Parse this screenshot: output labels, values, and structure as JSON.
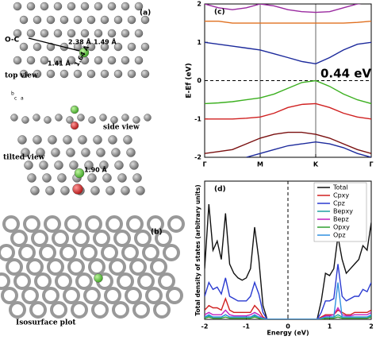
{
  "structure_panel": {
    "label_a": "(a)",
    "oc": "O-C",
    "d1": "2.38 Å",
    "d2": "1.49 Å",
    "d3": "1.41 Å",
    "d4": "1.64 Å",
    "top": "top view",
    "side": "side view",
    "tilted": "tilted view",
    "d5": "1.90 Å",
    "label_b": "(b)",
    "iso": "Isosurface plot",
    "axis_b": "b",
    "axis_c": "c",
    "axis_a": "a"
  },
  "chart_data": [
    {
      "type": "line",
      "panel": "(c)",
      "ylabel": "E-Ef (eV)",
      "annotation": "0.44 eV",
      "hline": 0,
      "x": [
        0,
        0.25,
        0.5,
        0.75,
        1,
        1.25,
        1.5,
        1.75,
        2,
        2.25,
        2.5,
        2.75,
        3
      ],
      "xlim": [
        0,
        3
      ],
      "xticks": [
        {
          "value": 0,
          "label": "Γ"
        },
        {
          "value": 1,
          "label": "M"
        },
        {
          "value": 2,
          "label": "K"
        },
        {
          "value": 3,
          "label": "Γ"
        }
      ],
      "ylim": [
        -2,
        2
      ],
      "yticks": [
        -2,
        -1,
        0,
        1,
        2
      ],
      "series": [
        {
          "color": "#1c2a9c",
          "values": [
            1.0,
            0.95,
            0.9,
            0.85,
            0.8,
            0.7,
            0.6,
            0.5,
            0.44,
            0.6,
            0.8,
            0.95,
            1.0
          ]
        },
        {
          "color": "#3cb020",
          "values": [
            -0.6,
            -0.58,
            -0.55,
            -0.5,
            -0.45,
            -0.35,
            -0.2,
            -0.05,
            0.0,
            -0.15,
            -0.35,
            -0.5,
            -0.6
          ]
        },
        {
          "color": "#d02020",
          "values": [
            -1.0,
            -1.0,
            -1.0,
            -0.98,
            -0.95,
            -0.85,
            -0.7,
            -0.62,
            -0.6,
            -0.7,
            -0.85,
            -0.95,
            -1.0
          ]
        },
        {
          "color": "#7a1010",
          "values": [
            -1.9,
            -1.85,
            -1.8,
            -1.65,
            -1.5,
            -1.4,
            -1.35,
            -1.35,
            -1.4,
            -1.5,
            -1.65,
            -1.8,
            -1.9
          ]
        },
        {
          "color": "#1c2a9c",
          "values": [
            null,
            null,
            null,
            -2.0,
            -1.9,
            -1.8,
            -1.7,
            -1.65,
            -1.6,
            -1.65,
            -1.75,
            -1.9,
            -2.0
          ]
        },
        {
          "color": "#e07020",
          "values": [
            1.55,
            1.55,
            1.5,
            1.5,
            1.5,
            1.5,
            1.5,
            1.5,
            1.5,
            1.5,
            1.5,
            1.52,
            1.55
          ]
        },
        {
          "color": "#9a2aa0",
          "values": [
            2.0,
            1.9,
            1.85,
            1.9,
            2.0,
            1.95,
            1.85,
            1.8,
            1.78,
            1.8,
            1.9,
            2.0,
            2.05
          ]
        }
      ]
    },
    {
      "type": "line",
      "panel": "(d)",
      "ylabel": "Total density of states (arbitrary units)",
      "xlabel": "Energy (eV)",
      "vline": 0,
      "x": [
        -2.0,
        -1.9,
        -1.8,
        -1.7,
        -1.6,
        -1.5,
        -1.4,
        -1.3,
        -1.2,
        -1.1,
        -1.0,
        -0.9,
        -0.8,
        -0.7,
        -0.6,
        -0.5,
        -0.4,
        -0.3,
        -0.2,
        -0.1,
        0,
        0.1,
        0.2,
        0.3,
        0.4,
        0.5,
        0.6,
        0.7,
        0.8,
        0.9,
        1.0,
        1.1,
        1.2,
        1.3,
        1.4,
        1.5,
        1.6,
        1.7,
        1.8,
        1.9,
        2.0
      ],
      "xlim": [
        -2,
        2
      ],
      "xticks": [
        -2,
        -1,
        0,
        1,
        2
      ],
      "ylim": [
        0,
        6
      ],
      "series": [
        {
          "name": "Total",
          "color": "#111111",
          "values": [
            2.2,
            5.0,
            3.0,
            3.4,
            2.6,
            4.6,
            2.4,
            2.0,
            1.8,
            1.7,
            1.8,
            2.2,
            4.0,
            2.6,
            0.6,
            0,
            0,
            0,
            0,
            0,
            0,
            0,
            0,
            0,
            0,
            0,
            0,
            0,
            0.8,
            2.0,
            1.9,
            2.2,
            3.6,
            2.6,
            2.0,
            2.2,
            2.4,
            2.6,
            3.2,
            3.0,
            4.2
          ]
        },
        {
          "name": "Cpxy",
          "color": "#d02020",
          "values": [
            0.4,
            0.6,
            0.5,
            0.5,
            0.4,
            0.9,
            0.4,
            0.3,
            0.3,
            0.3,
            0.3,
            0.3,
            0.6,
            0.4,
            0.1,
            0,
            0,
            0,
            0,
            0,
            0,
            0,
            0,
            0,
            0,
            0,
            0,
            0,
            0.1,
            0.2,
            0.2,
            0.2,
            0.4,
            0.3,
            0.2,
            0.2,
            0.3,
            0.3,
            0.3,
            0.3,
            0.4
          ]
        },
        {
          "name": "Cpz",
          "color": "#2a3ad0",
          "values": [
            1.0,
            1.6,
            1.3,
            1.4,
            1.1,
            1.8,
            1.0,
            0.9,
            0.8,
            0.8,
            0.8,
            1.0,
            1.6,
            1.1,
            0.3,
            0,
            0,
            0,
            0,
            0,
            0,
            0,
            0,
            0,
            0,
            0,
            0,
            0,
            0.3,
            0.8,
            0.8,
            0.9,
            2.4,
            1.0,
            0.8,
            0.9,
            1.0,
            1.0,
            1.3,
            1.2,
            1.6
          ]
        },
        {
          "name": "Bepxy",
          "color": "#20a0a0",
          "values": [
            0.1,
            0.15,
            0.1,
            0.1,
            0.1,
            0.2,
            0.1,
            0.1,
            0.1,
            0.1,
            0.1,
            0.1,
            0.15,
            0.1,
            0.05,
            0,
            0,
            0,
            0,
            0,
            0,
            0,
            0,
            0,
            0,
            0,
            0,
            0,
            0.05,
            0.1,
            0.1,
            0.1,
            0.2,
            0.1,
            0.1,
            0.1,
            0.1,
            0.1,
            0.1,
            0.1,
            0.15
          ]
        },
        {
          "name": "Bepz",
          "color": "#c020c0",
          "values": [
            0.2,
            0.3,
            0.2,
            0.2,
            0.2,
            0.4,
            0.2,
            0.15,
            0.15,
            0.15,
            0.15,
            0.2,
            0.3,
            0.2,
            0.05,
            0,
            0,
            0,
            0,
            0,
            0,
            0,
            0,
            0,
            0,
            0,
            0,
            0,
            0.05,
            0.15,
            0.15,
            0.2,
            0.5,
            0.2,
            0.15,
            0.15,
            0.2,
            0.2,
            0.2,
            0.2,
            0.3
          ]
        },
        {
          "name": "Opxy",
          "color": "#30a030",
          "values": [
            0.05,
            0.1,
            0.05,
            0.05,
            0.05,
            0.1,
            0.05,
            0.05,
            0.05,
            0.05,
            0.05,
            0.05,
            0.1,
            0.05,
            0,
            0,
            0,
            0,
            0,
            0,
            0,
            0,
            0,
            0,
            0,
            0,
            0,
            0,
            0,
            0.05,
            0.05,
            0.05,
            0.1,
            0.05,
            0.05,
            0.05,
            0.05,
            0.05,
            0.05,
            0.05,
            0.1
          ]
        },
        {
          "name": "Opz",
          "color": "#3090e0",
          "values": [
            0.1,
            0.2,
            0.1,
            0.1,
            0.1,
            0.2,
            0.1,
            0.1,
            0.1,
            0.1,
            0.1,
            0.1,
            0.2,
            0.1,
            0.05,
            0,
            0,
            0,
            0,
            0,
            0,
            0,
            0,
            0,
            0,
            0,
            0,
            0,
            0.05,
            0.1,
            0.1,
            0.1,
            1.6,
            0.1,
            0.1,
            0.1,
            0.1,
            0.1,
            0.1,
            0.1,
            0.2
          ]
        }
      ]
    }
  ]
}
